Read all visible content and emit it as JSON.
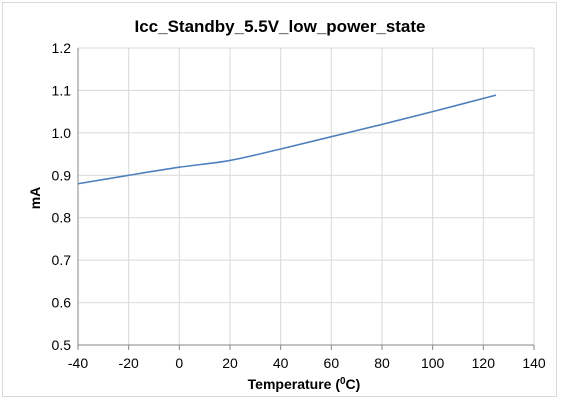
{
  "chart_data": {
    "type": "line",
    "title": "Icc_Standby_5.5V_low_power_state",
    "xlabel": "Temperature (",
    "xlabel_sup": "0",
    "xlabel_tail": "C)",
    "ylabel": "mA",
    "xlim": [
      -40,
      140
    ],
    "ylim": [
      0.5,
      1.2
    ],
    "x_ticks": [
      -40,
      -20,
      0,
      20,
      40,
      60,
      80,
      100,
      120,
      140
    ],
    "y_ticks": [
      "0.5",
      "0.6",
      "0.7",
      "0.8",
      "0.9",
      "1.0",
      "1.1",
      "1.2"
    ],
    "grid": true,
    "legend": "none",
    "series": [
      {
        "color": "#4f81bd",
        "x": [
          -40,
          -20,
          0,
          20,
          40,
          60,
          80,
          100,
          125
        ],
        "y": [
          0.88,
          0.9,
          0.919,
          0.935,
          0.962,
          0.991,
          1.02,
          1.05,
          1.089
        ]
      }
    ]
  },
  "colors": {
    "grid": "#d9d9d9",
    "axis": "#868686"
  }
}
